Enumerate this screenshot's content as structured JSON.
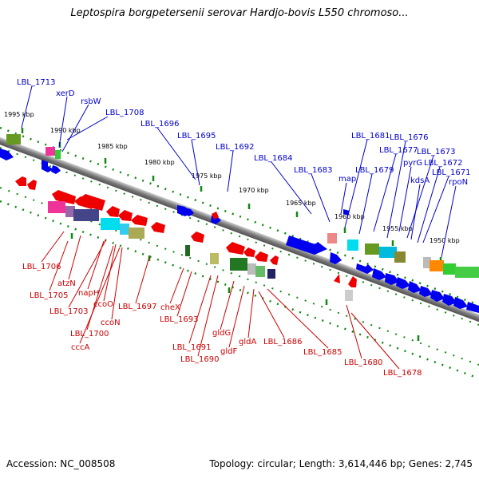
{
  "title": "Leptospira borgpetersenii serovar Hardjo-bovis L550 chromoso...",
  "footer": {
    "accession": "Accession: NC_008508",
    "summary": "Topology: circular; Length: 3,614,446 bp; Genes: 2,745"
  },
  "colors": {
    "forward_label": "#0000cc",
    "reverse_label": "#cc0000",
    "forward_gene": "#0000ee",
    "reverse_gene": "#ee0000",
    "tick": "#118811",
    "backbone": "#808080"
  },
  "scale_labels": [
    "1995 kbp",
    "1990 kbp",
    "1985 kbp",
    "1980 kbp",
    "1975 kbp",
    "1970 kbp",
    "1965 kbp",
    "1960 kbp",
    "1955 kbp",
    "1950 kbp"
  ],
  "forward_labels": [
    "LBL_1713",
    "xerD",
    "rsbW",
    "LBL_1708",
    "LBL_1696",
    "LBL_1695",
    "LBL_1692",
    "LBL_1684",
    "LBL_1683",
    "map",
    "LBL_1681",
    "LBL_1679",
    "LBL_1677",
    "LBL_1676",
    "pyrG",
    "LBL_1673",
    "kdsA",
    "LBL_1672",
    "LBL_1671",
    "rpoN"
  ],
  "reverse_labels": [
    "LBL_1706",
    "atzN",
    "LBL_1705",
    "napH",
    "LBL_1703",
    "ccoO",
    "ccoN",
    "LBL_1700",
    "cccA",
    "LBL_1697",
    "cheX",
    "LBL_1693",
    "LBL_1691",
    "LBL_1690",
    "gldG",
    "gldF",
    "gldA",
    "LBL_1686",
    "LBL_1685",
    "LBL_1680",
    "LBL_1678"
  ]
}
